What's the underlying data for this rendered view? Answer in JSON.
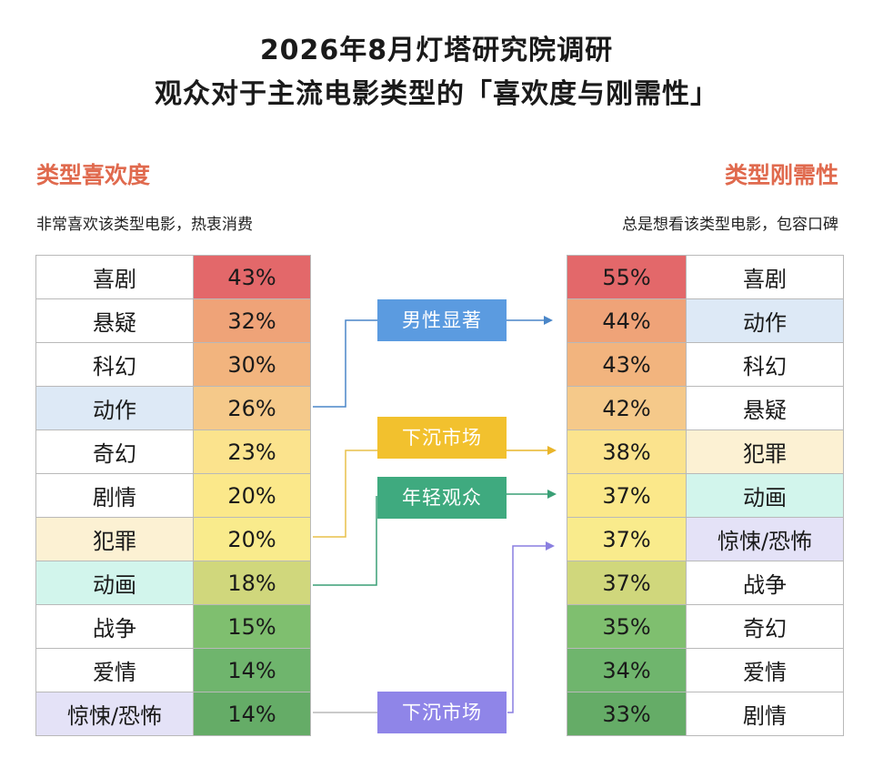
{
  "title_line1": "2026年8月灯塔研究院调研",
  "title_line2": "观众对于主流电影类型的「喜欢度与刚需性」",
  "left": {
    "heading": "类型喜欢度",
    "subheading": "非常喜欢该类型电影，热衷消费",
    "rows": [
      {
        "name": "喜剧",
        "pct": "43%"
      },
      {
        "name": "悬疑",
        "pct": "32%"
      },
      {
        "name": "科幻",
        "pct": "30%"
      },
      {
        "name": "动作",
        "pct": "26%"
      },
      {
        "name": "奇幻",
        "pct": "23%"
      },
      {
        "name": "剧情",
        "pct": "20%"
      },
      {
        "name": "犯罪",
        "pct": "20%"
      },
      {
        "name": "动画",
        "pct": "18%"
      },
      {
        "name": "战争",
        "pct": "15%"
      },
      {
        "name": "爱情",
        "pct": "14%"
      },
      {
        "name": "惊悚/恐怖",
        "pct": "14%"
      }
    ]
  },
  "right": {
    "heading": "类型刚需性",
    "subheading": "总是想看该类型电影，包容口碑",
    "rows": [
      {
        "name": "喜剧",
        "pct": "55%"
      },
      {
        "name": "动作",
        "pct": "44%"
      },
      {
        "name": "科幻",
        "pct": "43%"
      },
      {
        "name": "悬疑",
        "pct": "42%"
      },
      {
        "name": "犯罪",
        "pct": "38%"
      },
      {
        "name": "动画",
        "pct": "37%"
      },
      {
        "name": "惊悚/恐怖",
        "pct": "37%"
      },
      {
        "name": "战争",
        "pct": "37%"
      },
      {
        "name": "奇幻",
        "pct": "35%"
      },
      {
        "name": "爱情",
        "pct": "34%"
      },
      {
        "name": "剧情",
        "pct": "33%"
      }
    ]
  },
  "tags": [
    {
      "label": "男性显著",
      "color": "#5b9be0",
      "name_bg": "#dde9f6"
    },
    {
      "label": "下沉市场",
      "color": "#f2c12e",
      "name_bg": "#fcf1d3"
    },
    {
      "label": "年轻观众",
      "color": "#3faa7f",
      "name_bg": "#d2f5ec"
    },
    {
      "label": "下沉市场",
      "color": "#8f85e8",
      "name_bg": "#e4e2f7"
    }
  ],
  "chart_data": [
    {
      "type": "table",
      "title": "类型喜欢度",
      "categories": [
        "喜剧",
        "悬疑",
        "科幻",
        "动作",
        "奇幻",
        "剧情",
        "犯罪",
        "动画",
        "战争",
        "爱情",
        "惊悚/恐怖"
      ],
      "values": [
        43,
        32,
        30,
        26,
        23,
        20,
        20,
        18,
        15,
        14,
        14
      ],
      "unit": "%"
    },
    {
      "type": "table",
      "title": "类型刚需性",
      "categories": [
        "喜剧",
        "动作",
        "科幻",
        "悬疑",
        "犯罪",
        "动画",
        "惊悚/恐怖",
        "战争",
        "奇幻",
        "爱情",
        "剧情"
      ],
      "values": [
        55,
        44,
        43,
        42,
        38,
        37,
        37,
        37,
        35,
        34,
        33
      ],
      "unit": "%"
    }
  ],
  "colors": {
    "heading": "#e06a4e",
    "pct_scale": [
      "#e3686a",
      "#efa378",
      "#f2b47e",
      "#f5c98a",
      "#fbe38d",
      "#fbe88a",
      "#f9eb8c",
      "#d0d77c",
      "#7fbf6f",
      "#6fb56d",
      "#65ac67"
    ]
  }
}
